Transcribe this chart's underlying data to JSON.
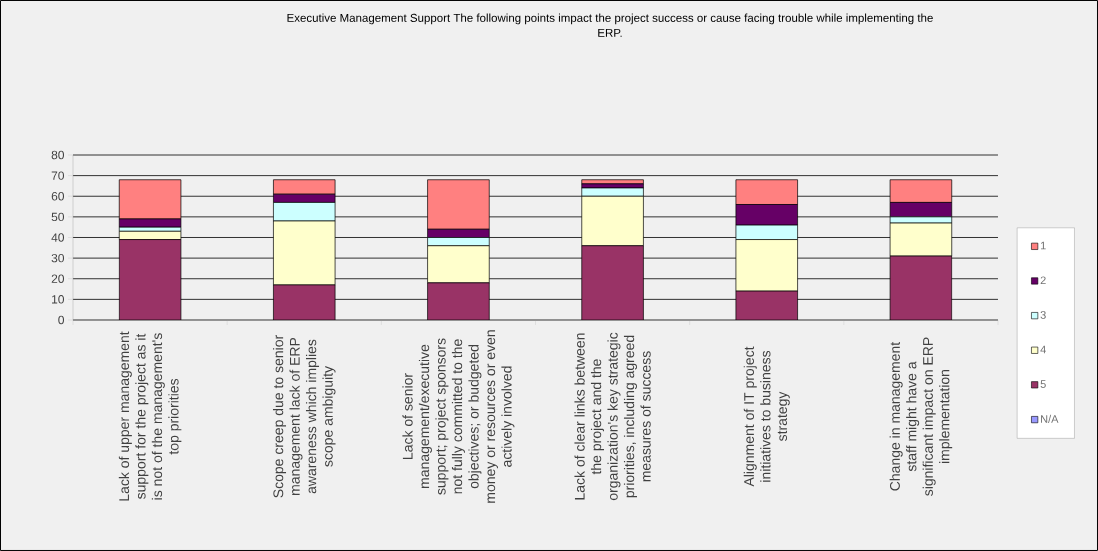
{
  "chart_data": {
    "type": "bar",
    "stacked": true,
    "title": "Executive Management Support The following points impact the project success or cause facing trouble while implementing the ERP.",
    "categories": [
      "Lack of upper management support for the project as it is not of the management's top priorities",
      "Scope creep due to senior management lack of ERP awareness which implies scope ambiguity",
      "Lack of senior management/executive support; project sponsors not fully committed to the objectives; or budgeted money or resources or even actively involved",
      "Lack of clear links between the project and the organization's key strategic priorities, including agreed measures of success",
      "Alignment of IT project initiatives to business strategy",
      "Change in management staff might have a significant impact on ERP implementation"
    ],
    "series": [
      {
        "name": "N/A",
        "color": "#9999ff",
        "values": [
          null,
          null,
          null,
          null,
          null,
          null
        ]
      },
      {
        "name": "5",
        "color": "#993366",
        "values": [
          39,
          17,
          18,
          36,
          14,
          31
        ]
      },
      {
        "name": "4",
        "color": "#ffffcc",
        "values": [
          4,
          31,
          18,
          24,
          25,
          16
        ]
      },
      {
        "name": "3",
        "color": "#ccffff",
        "values": [
          2,
          9,
          4,
          4,
          7,
          3
        ]
      },
      {
        "name": "2",
        "color": "#660066",
        "values": [
          4,
          4,
          4,
          2,
          10,
          7
        ]
      },
      {
        "name": "1",
        "color": "#ff8080",
        "values": [
          19,
          7,
          24,
          2,
          12,
          11
        ]
      }
    ],
    "ylim": [
      0,
      80
    ],
    "yticks": [
      0,
      10,
      20,
      30,
      40,
      50,
      60,
      70,
      80
    ],
    "grid": "y",
    "legend": "right"
  }
}
